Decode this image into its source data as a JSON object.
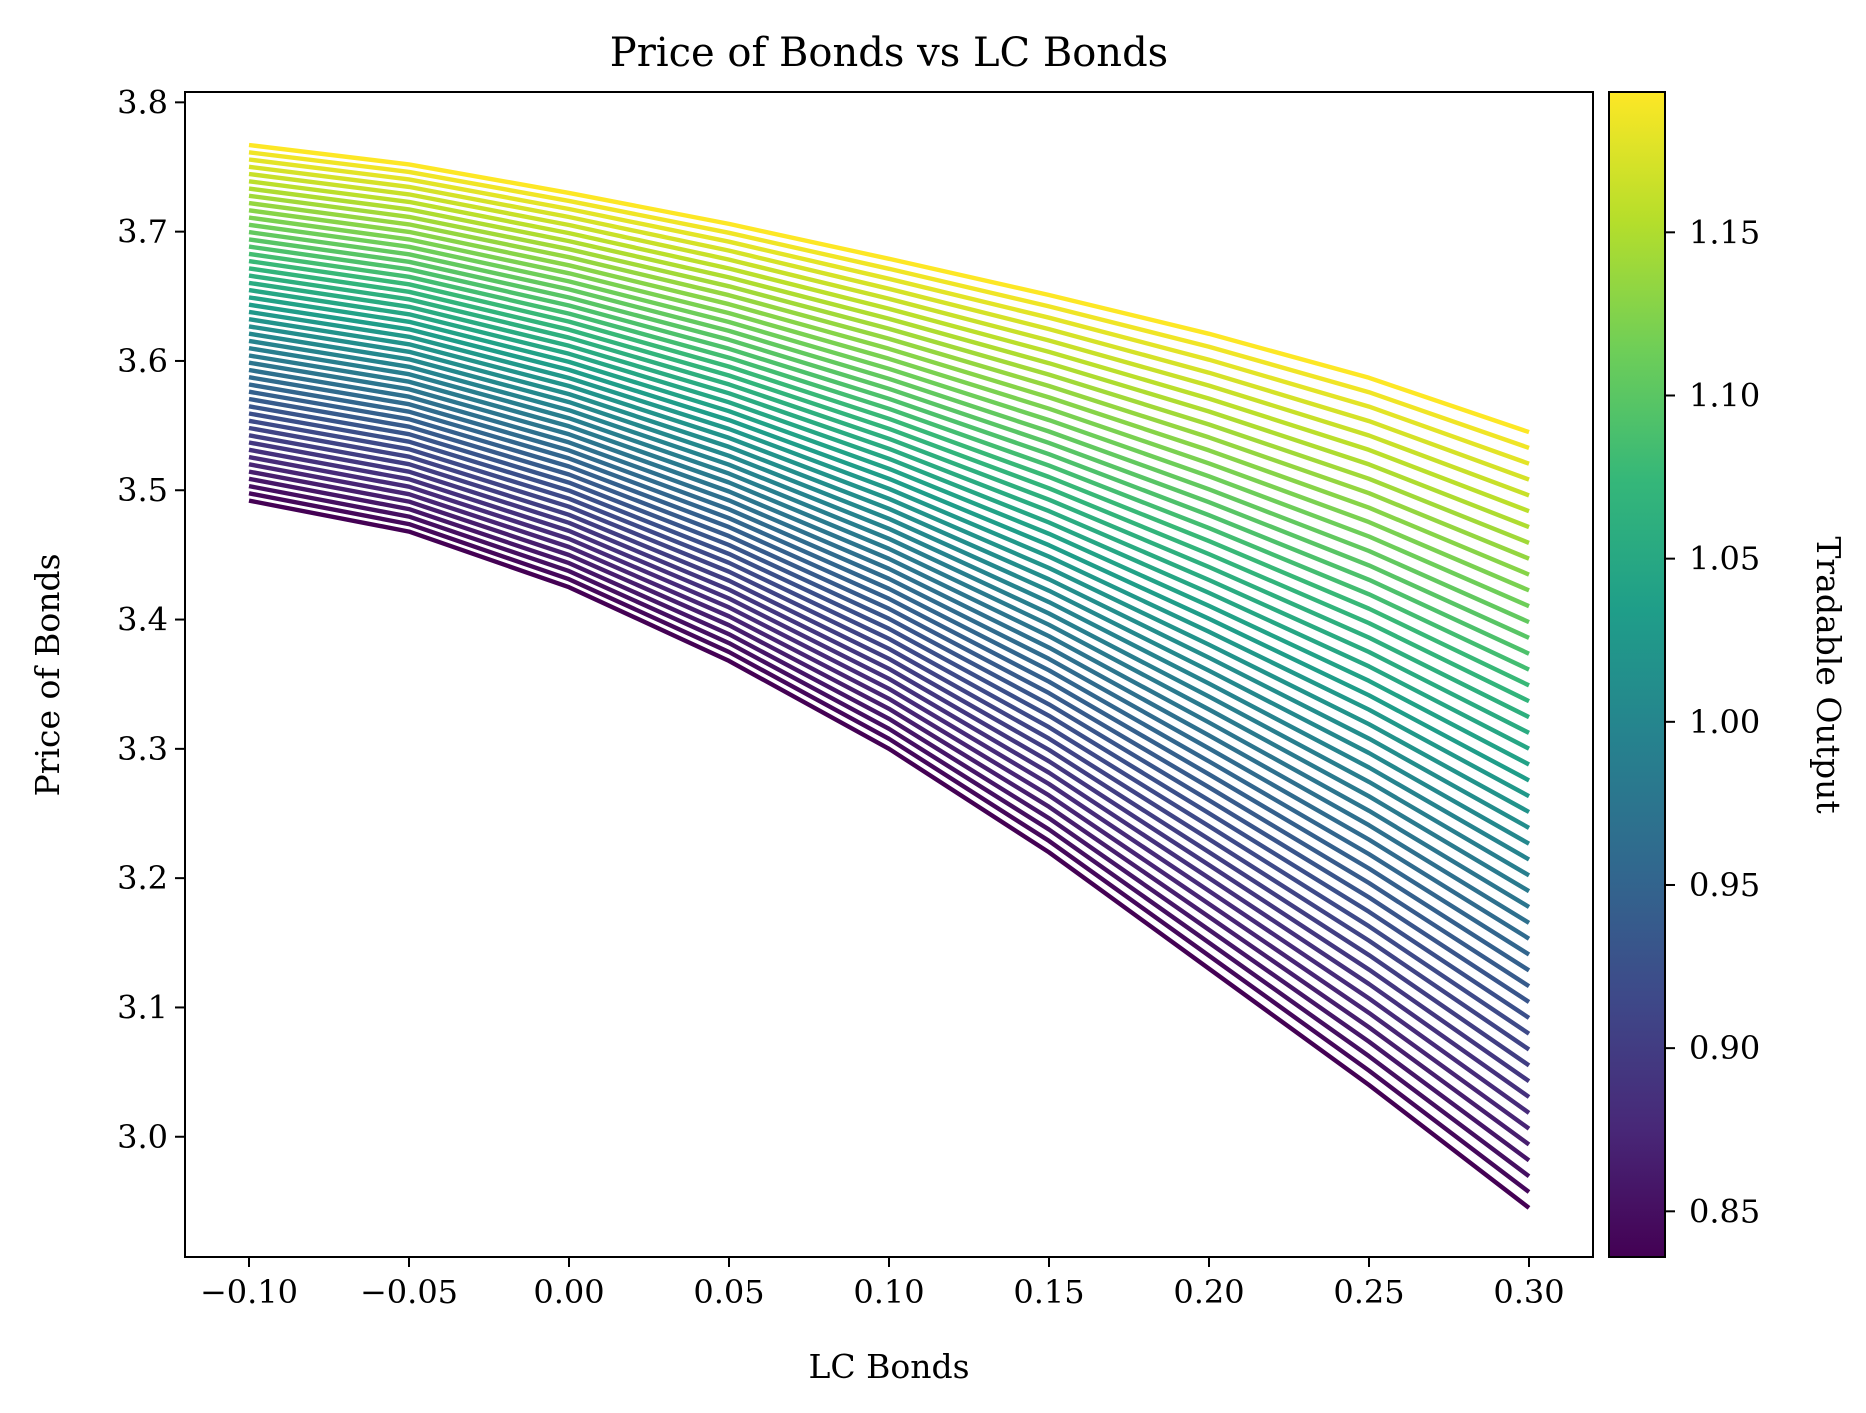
{
  "chart_data": {
    "type": "line",
    "title": "Price of Bonds vs LC Bonds",
    "xlabel": "LC Bonds",
    "ylabel": "Price of Bonds",
    "xlim": [
      -0.12,
      0.32
    ],
    "ylim": [
      2.907,
      3.808
    ],
    "x_ticks": [
      -0.1,
      -0.05,
      0.0,
      0.05,
      0.1,
      0.15,
      0.2,
      0.25,
      0.3
    ],
    "x_tick_labels": [
      "−0.10",
      "−0.05",
      "0.00",
      "0.05",
      "0.10",
      "0.15",
      "0.20",
      "0.25",
      "0.30"
    ],
    "y_ticks": [
      3.0,
      3.1,
      3.2,
      3.3,
      3.4,
      3.5,
      3.6,
      3.7,
      3.8
    ],
    "y_tick_labels": [
      "3.0",
      "3.1",
      "3.2",
      "3.3",
      "3.4",
      "3.5",
      "3.6",
      "3.7",
      "3.8"
    ],
    "grid": false,
    "legend": "none",
    "colormap": "viridis",
    "colorbar": {
      "label": "Tradable Output",
      "range": [
        0.836,
        1.193
      ],
      "ticks": [
        0.85,
        0.9,
        0.95,
        1.0,
        1.05,
        1.1,
        1.15
      ],
      "tick_labels": [
        "0.85",
        "0.90",
        "0.95",
        "1.00",
        "1.05",
        "1.10",
        "1.15"
      ]
    },
    "series_family": {
      "count": 50,
      "parameter": "Tradable Output",
      "parameter_range": [
        0.836,
        1.193
      ],
      "x": [
        -0.1,
        -0.05,
        0.0,
        0.05,
        0.1,
        0.15,
        0.2,
        0.25,
        0.3
      ],
      "lowest_curve_y": [
        3.492,
        3.468,
        3.425,
        3.368,
        3.3,
        3.22,
        3.13,
        3.04,
        2.945
      ],
      "highest_curve_y": [
        3.767,
        3.752,
        3.73,
        3.706,
        3.679,
        3.651,
        3.621,
        3.587,
        3.545
      ]
    },
    "viridis_stops": [
      "#440154",
      "#482878",
      "#3e4989",
      "#31688e",
      "#26828e",
      "#1f9e89",
      "#35b779",
      "#6ece58",
      "#b5de2b",
      "#fde725"
    ]
  }
}
